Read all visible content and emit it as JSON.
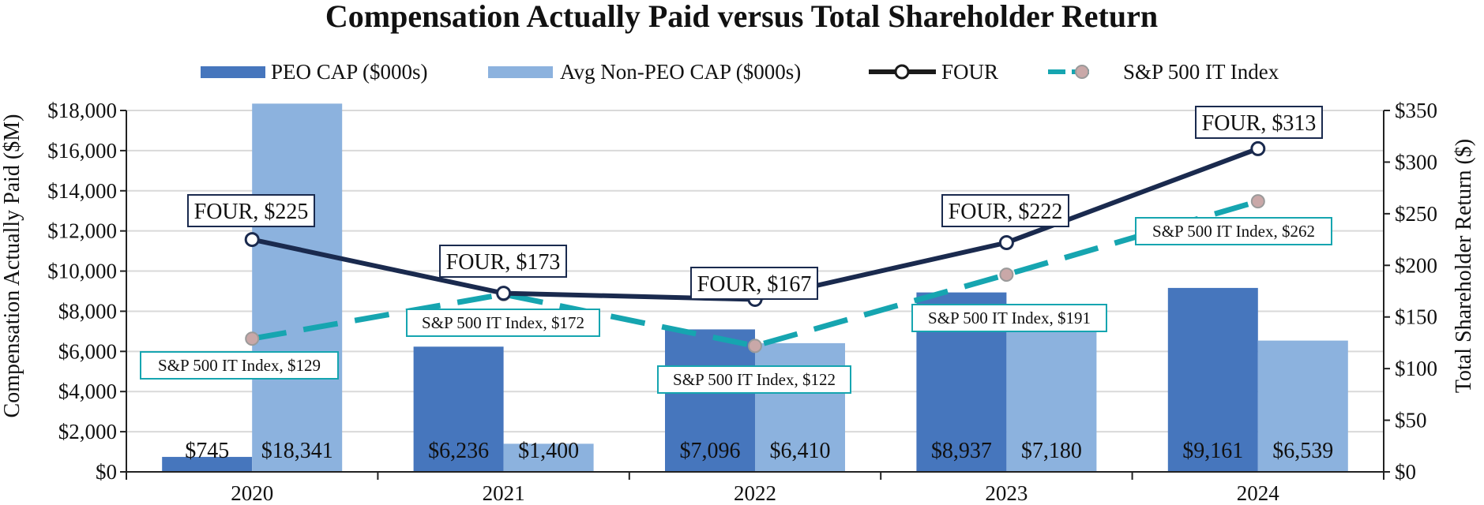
{
  "chart_data": {
    "type": "bar",
    "title": "Compensation Actually Paid versus Total Shareholder Return",
    "categories": [
      "2020",
      "2021",
      "2022",
      "2023",
      "2024"
    ],
    "ylabel": "Compensation Actually Paid ($M)",
    "y2label": "Total Shareholder Return ($)",
    "ylim": [
      0,
      18000
    ],
    "y2lim": [
      0,
      350
    ],
    "yticks": [
      "$0",
      "$2,000",
      "$4,000",
      "$6,000",
      "$8,000",
      "$10,000",
      "$12,000",
      "$14,000",
      "$16,000",
      "$18,000"
    ],
    "y2ticks": [
      "$0",
      "$50",
      "$100",
      "$150",
      "$200",
      "$250",
      "$300",
      "$350"
    ],
    "legend_position": "top",
    "grid": true,
    "series": [
      {
        "name": "PEO CAP ($000s)",
        "kind": "bar",
        "axis": "left",
        "color": "#4676bd",
        "values": [
          745,
          6236,
          7096,
          8937,
          9161
        ],
        "labels": [
          "$745",
          "$6,236",
          "$7,096",
          "$8,937",
          "$9,161"
        ]
      },
      {
        "name": "Avg Non-PEO CAP ($000s)",
        "kind": "bar",
        "axis": "left",
        "color": "#8cb2de",
        "values": [
          18341,
          1400,
          6410,
          7180,
          6539
        ],
        "labels": [
          "$18,341",
          "$1,400",
          "$6,410",
          "$7,180",
          "$6,539"
        ]
      },
      {
        "name": "FOUR",
        "kind": "line",
        "axis": "right",
        "color": "#1a2a4e",
        "values": [
          225,
          173,
          167,
          222,
          313
        ],
        "labels": [
          "FOUR, $225",
          "FOUR, $173",
          "FOUR, $167",
          "FOUR, $222",
          "FOUR, $313"
        ]
      },
      {
        "name": "S&P 500 IT Index",
        "kind": "line",
        "axis": "right",
        "color": "#16a5b0",
        "values": [
          129,
          172,
          122,
          191,
          262
        ],
        "labels": [
          "S&P 500 IT Index, $129",
          "S&P 500 IT Index, $172",
          "S&P 500 IT Index, $122",
          "S&P 500 IT Index, $191",
          "S&P 500 IT Index, $262"
        ]
      }
    ]
  }
}
